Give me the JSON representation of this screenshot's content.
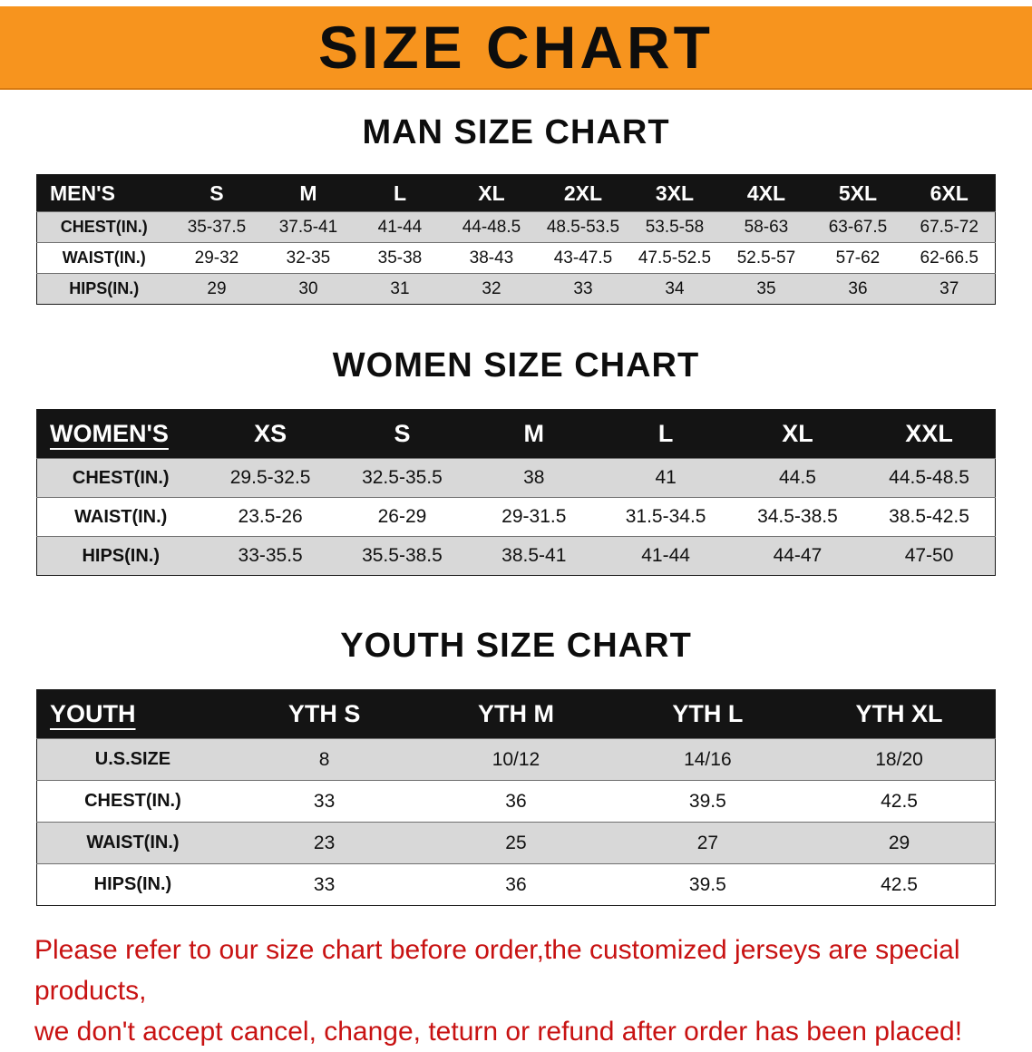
{
  "banner": {
    "title": "SIZE CHART",
    "bg_color": "#F7941E",
    "text_color": "#0D0D0D"
  },
  "sections": {
    "men": {
      "heading": "MAN SIZE CHART",
      "table": {
        "header": [
          "MEN'S",
          "S",
          "M",
          "L",
          "XL",
          "2XL",
          "3XL",
          "4XL",
          "5XL",
          "6XL"
        ],
        "rows": [
          [
            "CHEST(IN.)",
            "35-37.5",
            "37.5-41",
            "41-44",
            "44-48.5",
            "48.5-53.5",
            "53.5-58",
            "58-63",
            "63-67.5",
            "67.5-72"
          ],
          [
            "WAIST(IN.)",
            "29-32",
            "32-35",
            "35-38",
            "38-43",
            "43-47.5",
            "47.5-52.5",
            "52.5-57",
            "57-62",
            "62-66.5"
          ],
          [
            "HIPS(IN.)",
            "29",
            "30",
            "31",
            "32",
            "33",
            "34",
            "35",
            "36",
            "37"
          ]
        ]
      }
    },
    "women": {
      "heading": "WOMEN SIZE CHART",
      "table": {
        "header": [
          "WOMEN'S",
          "XS",
          "S",
          "M",
          "L",
          "XL",
          "XXL"
        ],
        "rows": [
          [
            "CHEST(IN.)",
            "29.5-32.5",
            "32.5-35.5",
            "38",
            "41",
            "44.5",
            "44.5-48.5"
          ],
          [
            "WAIST(IN.)",
            "23.5-26",
            "26-29",
            "29-31.5",
            "31.5-34.5",
            "34.5-38.5",
            "38.5-42.5"
          ],
          [
            "HIPS(IN.)",
            "33-35.5",
            "35.5-38.5",
            "38.5-41",
            "41-44",
            "44-47",
            "47-50"
          ]
        ]
      }
    },
    "youth": {
      "heading": "YOUTH SIZE CHART",
      "table": {
        "header": [
          "YOUTH",
          "YTH S",
          "YTH M",
          "YTH L",
          "YTH XL"
        ],
        "rows": [
          [
            "U.S.SIZE",
            "8",
            "10/12",
            "14/16",
            "18/20"
          ],
          [
            "CHEST(IN.)",
            "33",
            "36",
            "39.5",
            "42.5"
          ],
          [
            "WAIST(IN.)",
            "23",
            "25",
            "27",
            "29"
          ],
          [
            "HIPS(IN.)",
            "33",
            "36",
            "39.5",
            "42.5"
          ]
        ]
      }
    }
  },
  "disclaimer": {
    "line1": "Please refer to our size chart before order,the customized jerseys are special products,",
    "line2": "we don't accept cancel, change, teturn or refund after order has been placed!",
    "color": "#C81212"
  }
}
